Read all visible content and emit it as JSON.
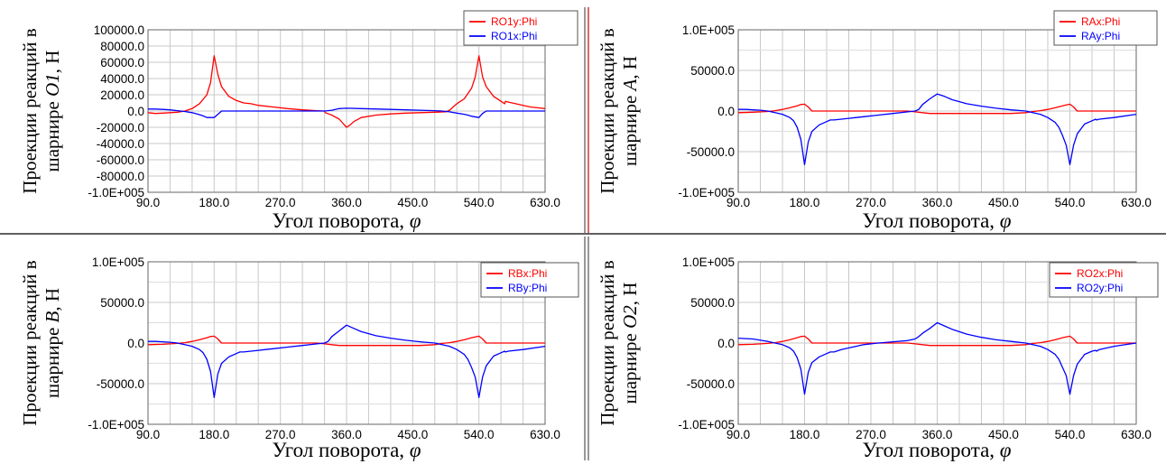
{
  "chart_data": [
    {
      "type": "line",
      "ylabel_line1": "Проекции реакций в",
      "ylabel_line2_prefix": "шарнире ",
      "ylabel_joint": "O1",
      "ylabel_suffix": ", Н",
      "xlabel": "Угол поворота, ",
      "xlabel_symbol": "φ",
      "xlim": [
        90,
        630
      ],
      "ylim": [
        -100000,
        100000
      ],
      "grid": true,
      "legend_position": "top-right",
      "x_ticks": [
        "90.0",
        "180.0",
        "270.0",
        "360.0",
        "450.0",
        "540.0",
        "630.0"
      ],
      "y_ticks": [
        {
          "value": 100000,
          "label": "100000.0"
        },
        {
          "value": 80000,
          "label": "80000.0"
        },
        {
          "value": 60000,
          "label": "60000.0"
        },
        {
          "value": 40000,
          "label": "40000.0"
        },
        {
          "value": 20000,
          "label": "20000.0"
        },
        {
          "value": 0,
          "label": "0.0"
        },
        {
          "value": -20000,
          "label": "-20000.0"
        },
        {
          "value": -40000,
          "label": "-40000.0"
        },
        {
          "value": -60000,
          "label": "-60000.0"
        },
        {
          "value": -80000,
          "label": "-80000.0"
        },
        {
          "value": -100000,
          "label": "-1.0E+005"
        }
      ],
      "series": [
        {
          "name": "RO1y:Phi",
          "color": "#ff0000",
          "x": [
            90,
            100,
            110,
            120,
            130,
            140,
            150,
            160,
            170,
            175,
            180,
            185,
            190,
            200,
            210,
            220,
            230,
            240,
            260,
            280,
            300,
            320,
            330,
            331,
            340,
            350,
            355,
            360,
            365,
            370,
            380,
            400,
            420,
            440,
            460,
            480,
            495,
            500,
            505,
            510,
            520,
            530,
            535,
            540,
            545,
            550,
            560,
            570,
            575,
            576,
            580,
            590,
            600,
            610,
            620,
            630
          ],
          "y": [
            -2000,
            -3000,
            -2500,
            -2000,
            -1500,
            0,
            3000,
            9000,
            20000,
            35000,
            68000,
            45000,
            30000,
            18000,
            13000,
            10000,
            9000,
            7000,
            5000,
            3000,
            1500,
            500,
            0,
            -2000,
            -5000,
            -10000,
            -15000,
            -20000,
            -17000,
            -13000,
            -8000,
            -5000,
            -3500,
            -2500,
            -2000,
            -1500,
            -1000,
            1000,
            5000,
            9000,
            15000,
            28000,
            42000,
            68000,
            42000,
            30000,
            18000,
            12000,
            9000,
            12000,
            11000,
            9000,
            7000,
            5000,
            4000,
            3000
          ]
        },
        {
          "name": "RO1x:Phi",
          "color": "#0000ff",
          "x": [
            90,
            100,
            110,
            120,
            130,
            140,
            150,
            160,
            165,
            170,
            180,
            185,
            190,
            200,
            210,
            220,
            300,
            330,
            340,
            350,
            360,
            380,
            420,
            460,
            480,
            490,
            500,
            510,
            520,
            525,
            530,
            540,
            545,
            550,
            555,
            560,
            570,
            600,
            630
          ],
          "y": [
            2500,
            2500,
            2000,
            1500,
            500,
            -500,
            -2000,
            -4500,
            -6000,
            -8000,
            -8000,
            -4000,
            0,
            0,
            0,
            0,
            0,
            0,
            1000,
            3000,
            3500,
            3000,
            2000,
            1000,
            500,
            0,
            -1000,
            -2500,
            -4000,
            -5000,
            -6500,
            -8000,
            -3000,
            0,
            0,
            0,
            0,
            0,
            0
          ]
        }
      ]
    },
    {
      "type": "line",
      "ylabel_line1": "Проекции реакций в",
      "ylabel_line2_prefix": "шарнире ",
      "ylabel_joint": "A",
      "ylabel_suffix": ", Н",
      "xlabel": "Угол поворота, ",
      "xlabel_symbol": "φ",
      "xlim": [
        90,
        630
      ],
      "ylim": [
        -100000,
        100000
      ],
      "grid": true,
      "legend_position": "top-right",
      "x_ticks": [
        "90.0",
        "180.0",
        "270.0",
        "360.0",
        "450.0",
        "540.0",
        "630.0"
      ],
      "y_ticks": [
        {
          "value": 100000,
          "label": "1.0E+005"
        },
        {
          "value": 50000,
          "label": "50000.0"
        },
        {
          "value": 0,
          "label": "0.0"
        },
        {
          "value": -50000,
          "label": "-50000.0"
        },
        {
          "value": -100000,
          "label": "-1.0E+005"
        }
      ],
      "series": [
        {
          "name": "RAx:Phi",
          "color": "#ff0000",
          "x": [
            90,
            110,
            130,
            140,
            150,
            160,
            170,
            175,
            180,
            185,
            190,
            200,
            220,
            230,
            320,
            330,
            340,
            350,
            360,
            380,
            420,
            460,
            480,
            490,
            500,
            510,
            520,
            530,
            540,
            545,
            550,
            560,
            630
          ],
          "y": [
            -2000,
            -1500,
            -500,
            500,
            2000,
            4000,
            6500,
            8000,
            8500,
            5000,
            0,
            0,
            0,
            0,
            0,
            -1000,
            -2000,
            -3000,
            -3000,
            -3000,
            -3000,
            -3000,
            -2000,
            -500,
            500,
            2000,
            4000,
            6500,
            8500,
            5000,
            0,
            0,
            0
          ]
        },
        {
          "name": "RAy:Phi",
          "color": "#0000ff",
          "x": [
            90,
            100,
            110,
            120,
            130,
            140,
            150,
            160,
            165,
            170,
            175,
            180,
            185,
            190,
            200,
            210,
            215,
            220,
            230,
            240,
            250,
            260,
            280,
            300,
            320,
            330,
            335,
            340,
            350,
            360,
            370,
            380,
            400,
            420,
            440,
            460,
            480,
            500,
            510,
            520,
            525,
            530,
            535,
            540,
            545,
            550,
            560,
            570,
            575,
            576,
            580,
            600,
            630
          ],
          "y": [
            2000,
            2000,
            1500,
            1000,
            0,
            -2000,
            -4000,
            -8000,
            -12000,
            -20000,
            -35000,
            -66000,
            -38000,
            -25000,
            -17000,
            -13000,
            -11000,
            -11000,
            -10000,
            -9000,
            -8000,
            -7000,
            -5000,
            -3000,
            -1000,
            0,
            2000,
            8000,
            15000,
            21000,
            18000,
            14000,
            9000,
            6000,
            3500,
            1500,
            0,
            -4000,
            -8000,
            -14000,
            -20000,
            -30000,
            -42000,
            -66000,
            -42000,
            -28000,
            -16000,
            -12000,
            -10000,
            -11000,
            -10000,
            -8000,
            -4000
          ]
        }
      ]
    },
    {
      "type": "line",
      "ylabel_line1": "Проекции реакций в",
      "ylabel_line2_prefix": "шарнире ",
      "ylabel_joint": "B",
      "ylabel_suffix": ", Н",
      "xlabel": "Угол поворота, ",
      "xlabel_symbol": "φ",
      "xlim": [
        90,
        630
      ],
      "ylim": [
        -100000,
        100000
      ],
      "grid": true,
      "legend_position": "top-right",
      "x_ticks": [
        "90.0",
        "180.0",
        "270.0",
        "360.0",
        "450.0",
        "540.0",
        "630.0"
      ],
      "y_ticks": [
        {
          "value": 100000,
          "label": "1.0E+005"
        },
        {
          "value": 50000,
          "label": "50000.0"
        },
        {
          "value": 0,
          "label": "0.0"
        },
        {
          "value": -50000,
          "label": "-50000.0"
        },
        {
          "value": -100000,
          "label": "-1.0E+005"
        }
      ],
      "series": [
        {
          "name": "RBx:Phi",
          "color": "#ff0000",
          "x": [
            90,
            110,
            130,
            140,
            150,
            160,
            170,
            175,
            180,
            185,
            190,
            200,
            220,
            230,
            320,
            330,
            340,
            350,
            360,
            380,
            420,
            460,
            480,
            490,
            500,
            510,
            520,
            530,
            540,
            545,
            550,
            560,
            630
          ],
          "y": [
            -2000,
            -1500,
            -500,
            500,
            2000,
            4000,
            6500,
            8000,
            8500,
            5000,
            0,
            0,
            0,
            0,
            0,
            -1000,
            -2000,
            -3000,
            -3000,
            -3000,
            -3000,
            -3000,
            -2000,
            -500,
            500,
            2000,
            4000,
            6500,
            8500,
            5000,
            0,
            0,
            0
          ]
        },
        {
          "name": "RBy:Phi",
          "color": "#0000ff",
          "x": [
            90,
            100,
            110,
            120,
            130,
            140,
            150,
            160,
            165,
            170,
            175,
            180,
            185,
            190,
            200,
            210,
            215,
            220,
            230,
            240,
            250,
            260,
            280,
            300,
            320,
            330,
            335,
            340,
            350,
            360,
            370,
            380,
            400,
            420,
            440,
            460,
            480,
            500,
            510,
            520,
            525,
            530,
            535,
            540,
            545,
            550,
            560,
            570,
            575,
            576,
            580,
            600,
            630
          ],
          "y": [
            2000,
            2000,
            1500,
            1000,
            0,
            -2000,
            -4000,
            -8000,
            -12000,
            -20000,
            -35000,
            -67000,
            -38000,
            -25000,
            -17000,
            -13000,
            -11000,
            -11000,
            -10000,
            -9000,
            -8000,
            -7000,
            -5000,
            -3000,
            -1000,
            0,
            2000,
            8000,
            15000,
            22000,
            18000,
            14000,
            9000,
            6000,
            3500,
            1500,
            0,
            -4000,
            -8000,
            -14000,
            -20000,
            -30000,
            -42000,
            -67000,
            -42000,
            -28000,
            -16000,
            -12000,
            -10000,
            -11000,
            -10000,
            -8000,
            -4000
          ]
        }
      ]
    },
    {
      "type": "line",
      "ylabel_line1": "Проекции реакций в",
      "ylabel_line2_prefix": "шарнире ",
      "ylabel_joint": "O2",
      "ylabel_suffix": ", Н",
      "xlabel": "Угол поворота, ",
      "xlabel_symbol": "φ",
      "xlim": [
        90,
        630
      ],
      "ylim": [
        -100000,
        100000
      ],
      "grid": true,
      "legend_position": "top-right",
      "x_ticks": [
        "90.0",
        "180.0",
        "270.0",
        "360.0",
        "450.0",
        "540.0",
        "630.0"
      ],
      "y_ticks": [
        {
          "value": 100000,
          "label": "1.0E+005"
        },
        {
          "value": 50000,
          "label": "50000.0"
        },
        {
          "value": 0,
          "label": "0.0"
        },
        {
          "value": -50000,
          "label": "-50000.0"
        },
        {
          "value": -100000,
          "label": "-1.0E+005"
        }
      ],
      "series": [
        {
          "name": "RO2x:Phi",
          "color": "#ff0000",
          "x": [
            90,
            110,
            130,
            140,
            150,
            160,
            170,
            175,
            180,
            185,
            190,
            200,
            220,
            230,
            320,
            330,
            340,
            350,
            360,
            380,
            420,
            460,
            480,
            490,
            500,
            510,
            520,
            530,
            540,
            545,
            550,
            560,
            630
          ],
          "y": [
            -2000,
            -1500,
            -500,
            500,
            2000,
            4000,
            6500,
            8000,
            8500,
            5000,
            0,
            0,
            0,
            0,
            0,
            -1000,
            -2000,
            -3000,
            -3000,
            -3000,
            -3000,
            -3000,
            -2000,
            -500,
            500,
            2000,
            4000,
            6500,
            8500,
            5000,
            0,
            0,
            0
          ]
        },
        {
          "name": "RO2y:Phi",
          "color": "#0000ff",
          "x": [
            90,
            100,
            110,
            120,
            130,
            140,
            150,
            160,
            165,
            170,
            175,
            180,
            185,
            190,
            200,
            210,
            215,
            220,
            230,
            240,
            250,
            260,
            280,
            300,
            320,
            330,
            335,
            340,
            350,
            360,
            370,
            380,
            400,
            420,
            440,
            460,
            480,
            500,
            510,
            520,
            525,
            530,
            535,
            540,
            545,
            550,
            560,
            570,
            575,
            576,
            580,
            600,
            630
          ],
          "y": [
            6000,
            5500,
            5000,
            3500,
            2000,
            0,
            -2000,
            -6000,
            -10000,
            -18000,
            -32000,
            -63000,
            -36000,
            -24000,
            -17000,
            -13000,
            -11000,
            -11000,
            -8000,
            -6000,
            -4000,
            -2000,
            0,
            1500,
            3000,
            5000,
            8000,
            12000,
            18000,
            25000,
            21000,
            17000,
            11000,
            7000,
            4000,
            2000,
            0,
            -4000,
            -8000,
            -14000,
            -20000,
            -30000,
            -40000,
            -63000,
            -40000,
            -26000,
            -14000,
            -10000,
            -9000,
            -10000,
            -8000,
            -4000,
            0
          ]
        }
      ]
    }
  ]
}
